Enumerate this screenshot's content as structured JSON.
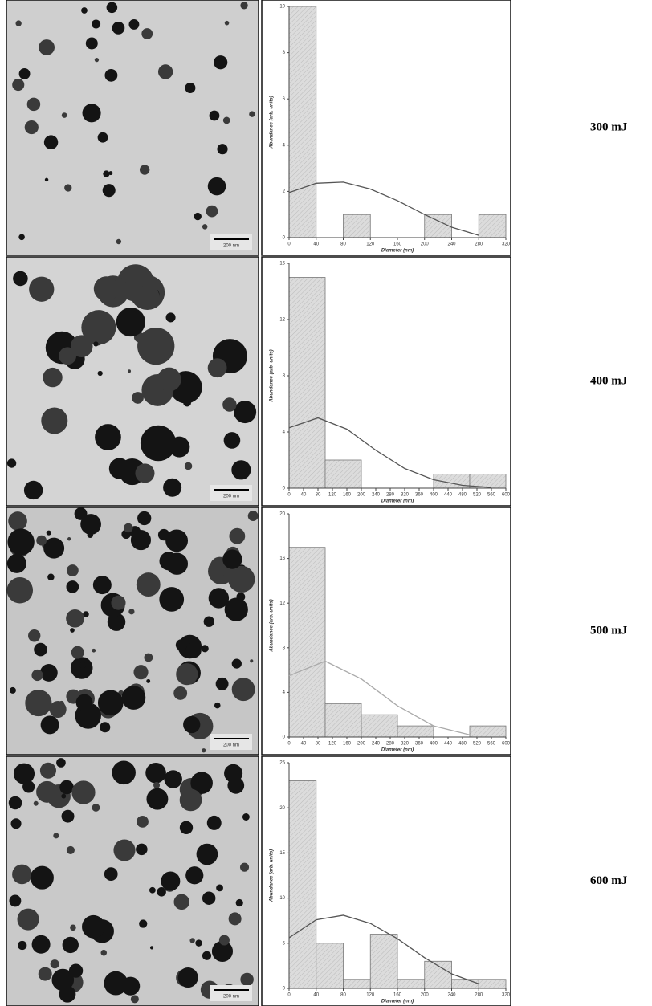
{
  "chart_data": [
    {
      "type": "histogram",
      "label": "300 mJ",
      "scale_bar": "200 nm",
      "xlabel": "Diameter (nm)",
      "ylabel": "Abundance (arb. units)",
      "bins": [
        0,
        40,
        80,
        120,
        160,
        200,
        240,
        280,
        320
      ],
      "values": [
        10,
        0,
        1,
        0,
        0,
        1,
        0,
        1
      ],
      "xlim": [
        0,
        320
      ],
      "ylim": [
        0,
        10
      ],
      "xticks": [
        0,
        40,
        80,
        120,
        160,
        200,
        240,
        280,
        320
      ],
      "yticks": [
        0,
        2,
        4,
        6,
        8,
        10
      ],
      "fit": {
        "x": [
          0,
          40,
          80,
          120,
          160,
          200,
          240,
          280
        ],
        "values": [
          1.95,
          2.35,
          2.4,
          2.1,
          1.6,
          1.0,
          0.45,
          0.1
        ]
      },
      "color": "#d9d9d9",
      "fit_color": "#555555"
    },
    {
      "type": "histogram",
      "label": "400 mJ",
      "scale_bar": "200 nm",
      "xlabel": "Diameter (nm)",
      "ylabel": "Abundance (arb. units)",
      "bins": [
        0,
        100,
        200,
        300,
        400,
        500,
        600
      ],
      "values": [
        15,
        2,
        0,
        0,
        1,
        1
      ],
      "xlim": [
        0,
        600
      ],
      "ylim": [
        0,
        16
      ],
      "xticks": [
        0,
        40,
        80,
        120,
        160,
        200,
        240,
        280,
        320,
        360,
        400,
        440,
        480,
        520,
        560,
        600
      ],
      "yticks": [
        0,
        4,
        8,
        12,
        16
      ],
      "fit": {
        "x": [
          0,
          80,
          160,
          240,
          320,
          400,
          480,
          560
        ],
        "values": [
          4.3,
          5.0,
          4.2,
          2.7,
          1.4,
          0.6,
          0.2,
          0.05
        ]
      },
      "color": "#d9d9d9",
      "fit_color": "#555555"
    },
    {
      "type": "histogram",
      "label": "500 mJ",
      "scale_bar": "200 nm",
      "xlabel": "Diameter (nm)",
      "ylabel": "Abundance (arb. units)",
      "bins": [
        0,
        100,
        200,
        300,
        400,
        500,
        600
      ],
      "values": [
        17,
        3,
        2,
        1,
        0,
        1
      ],
      "xlim": [
        0,
        600
      ],
      "ylim": [
        0,
        20
      ],
      "xticks": [
        0,
        40,
        80,
        120,
        160,
        200,
        240,
        280,
        320,
        360,
        400,
        440,
        480,
        520,
        560,
        600
      ],
      "yticks": [
        0,
        4,
        8,
        12,
        16,
        20
      ],
      "fit": {
        "x": [
          0,
          100,
          200,
          300,
          400,
          500
        ],
        "values": [
          5.5,
          6.8,
          5.2,
          2.8,
          1.0,
          0.2
        ]
      },
      "color": "#d9d9d9",
      "fit_color": "#aaaaaa"
    },
    {
      "type": "histogram",
      "label": "600 mJ",
      "scale_bar": "200 nm",
      "xlabel": "Diameter (nm)",
      "ylabel": "Abundance (arb. units)",
      "bins": [
        0,
        40,
        80,
        120,
        160,
        200,
        240,
        280,
        320
      ],
      "values": [
        23,
        5,
        1,
        6,
        1,
        3,
        1,
        1
      ],
      "xlim": [
        0,
        320
      ],
      "ylim": [
        0,
        25
      ],
      "xticks": [
        0,
        40,
        80,
        120,
        160,
        200,
        240,
        280,
        320
      ],
      "yticks": [
        0,
        5,
        10,
        15,
        20,
        25
      ],
      "fit": {
        "x": [
          0,
          40,
          80,
          120,
          160,
          200,
          240,
          280
        ],
        "values": [
          5.6,
          7.6,
          8.1,
          7.2,
          5.5,
          3.4,
          1.6,
          0.5
        ]
      },
      "color": "#d9d9d9",
      "fit_color": "#555555"
    }
  ]
}
